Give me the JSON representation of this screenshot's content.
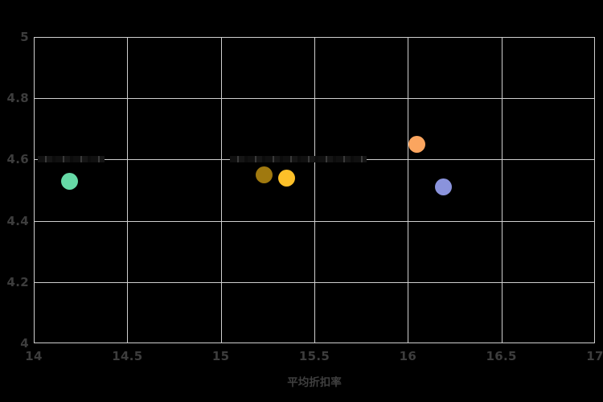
{
  "chart_data": {
    "type": "scatter",
    "title": "",
    "xlabel": "平均折扣率",
    "ylabel": "",
    "xlim": [
      14,
      17
    ],
    "ylim": [
      4,
      5
    ],
    "x_ticks": [
      14,
      14.5,
      15,
      15.5,
      16,
      16.5,
      17
    ],
    "x_tick_labels": [
      "14",
      "14.5",
      "15",
      "15.5",
      "16",
      "16.5",
      "17"
    ],
    "y_ticks": [
      4,
      4.2,
      4.4,
      4.6,
      4.8,
      5
    ],
    "y_tick_labels": [
      "4",
      "4.2",
      "4.4",
      "4.6",
      "4.8",
      "5"
    ],
    "grid": true,
    "legend": false,
    "colors": {
      "background": "#000000",
      "gridline": "#cfcfcf",
      "tick_label": "#3d3d3d",
      "axis_title": "#3f3f3f"
    },
    "points": [
      {
        "name": "teal",
        "x": 14.19,
        "y": 4.53,
        "color": "#66d9a6",
        "diameter": 21
      },
      {
        "name": "dark-gold",
        "x": 15.23,
        "y": 4.55,
        "color": "#a0790f",
        "diameter": 21
      },
      {
        "name": "gold",
        "x": 15.35,
        "y": 4.54,
        "color": "#fdc029",
        "diameter": 21
      },
      {
        "name": "orange",
        "x": 16.05,
        "y": 4.65,
        "color": "#fba55f",
        "diameter": 21
      },
      {
        "name": "blue",
        "x": 16.19,
        "y": 4.51,
        "color": "#8a93dc",
        "diameter": 21
      }
    ],
    "obscured_labels": [
      {
        "x_start": 14.02,
        "x_end": 14.38,
        "y": 4.6
      },
      {
        "x_start": 15.05,
        "x_end": 15.78,
        "y": 4.6
      }
    ]
  }
}
